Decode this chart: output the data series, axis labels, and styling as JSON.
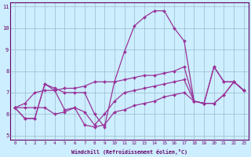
{
  "x": [
    0,
    1,
    2,
    3,
    4,
    5,
    6,
    7,
    8,
    9,
    10,
    11,
    12,
    13,
    14,
    15,
    16,
    17,
    18,
    19,
    20,
    21,
    22,
    23
  ],
  "line1": [
    6.3,
    5.8,
    5.8,
    7.4,
    7.1,
    7.2,
    7.2,
    7.3,
    7.5,
    7.5,
    7.5,
    8.9,
    10.1,
    10.5,
    10.8,
    10.8,
    10.0,
    9.4,
    6.6,
    6.5,
    8.2,
    7.5,
    7.5,
    7.1
  ],
  "line2": [
    6.3,
    5.8,
    5.8,
    7.4,
    7.2,
    7.0,
    7.0,
    7.0,
    6.0,
    5.4,
    7.5,
    7.6,
    7.7,
    7.8,
    7.8,
    7.9,
    8.0,
    8.2,
    6.6,
    6.5,
    8.2,
    7.5,
    7.5,
    7.1
  ],
  "line3": [
    6.3,
    6.3,
    6.3,
    6.3,
    6.0,
    6.1,
    6.3,
    6.1,
    5.5,
    6.0,
    6.6,
    7.0,
    7.1,
    7.2,
    7.3,
    7.4,
    7.5,
    7.6,
    6.6,
    6.5,
    6.5,
    6.9,
    7.5,
    7.1
  ],
  "line4": [
    6.3,
    6.5,
    7.0,
    7.1,
    7.1,
    6.2,
    6.3,
    5.5,
    5.4,
    5.5,
    6.1,
    6.2,
    6.4,
    6.5,
    6.6,
    6.8,
    6.9,
    7.0,
    6.6,
    6.5,
    6.5,
    6.9,
    7.5,
    7.1
  ],
  "bg_color": "#cceeff",
  "line_color": "#993399",
  "grid_color": "#99bbcc",
  "xlabel": "Windchill (Refroidissement éolien,°C)",
  "xlim": [
    -0.5,
    23.5
  ],
  "ylim": [
    4.8,
    11.2
  ],
  "yticks": [
    5,
    6,
    7,
    8,
    9,
    10,
    11
  ],
  "xticks": [
    0,
    1,
    2,
    3,
    4,
    5,
    6,
    7,
    8,
    9,
    10,
    11,
    12,
    13,
    14,
    15,
    16,
    17,
    18,
    19,
    20,
    21,
    22,
    23
  ],
  "axis_color": "#660066",
  "marker": "D",
  "markersize": 2.0,
  "linewidth": 0.9
}
